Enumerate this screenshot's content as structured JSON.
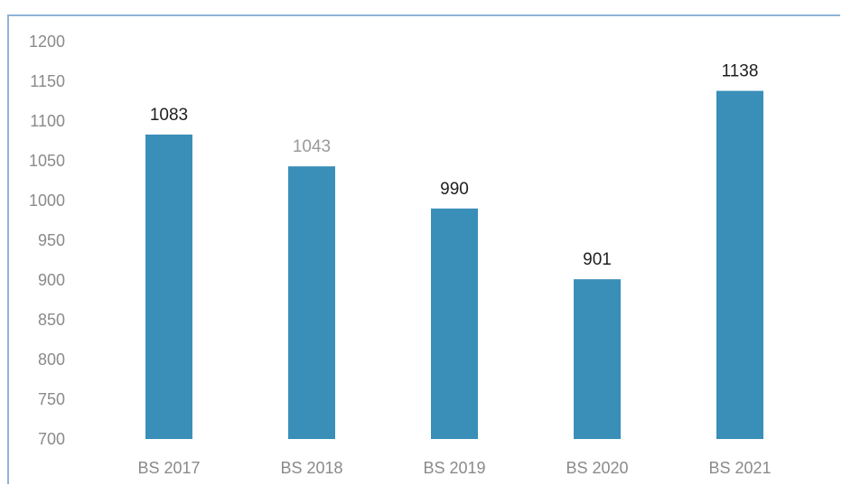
{
  "chart_data": {
    "type": "bar",
    "categories": [
      "BS 2017",
      "BS 2018",
      "BS 2019",
      "BS 2020",
      "BS 2021"
    ],
    "values": [
      1083,
      1043,
      990,
      901,
      1138
    ],
    "data_labels": [
      "1083",
      "1043",
      "990",
      "901",
      "1138"
    ],
    "title": "",
    "xlabel": "",
    "ylabel": "",
    "ylim": [
      700,
      1200
    ],
    "yticks": [
      700,
      750,
      800,
      850,
      900,
      950,
      1000,
      1050,
      1100,
      1150,
      1200
    ],
    "grid": false,
    "legend": "none",
    "bar_color": "#3a8fb8"
  }
}
